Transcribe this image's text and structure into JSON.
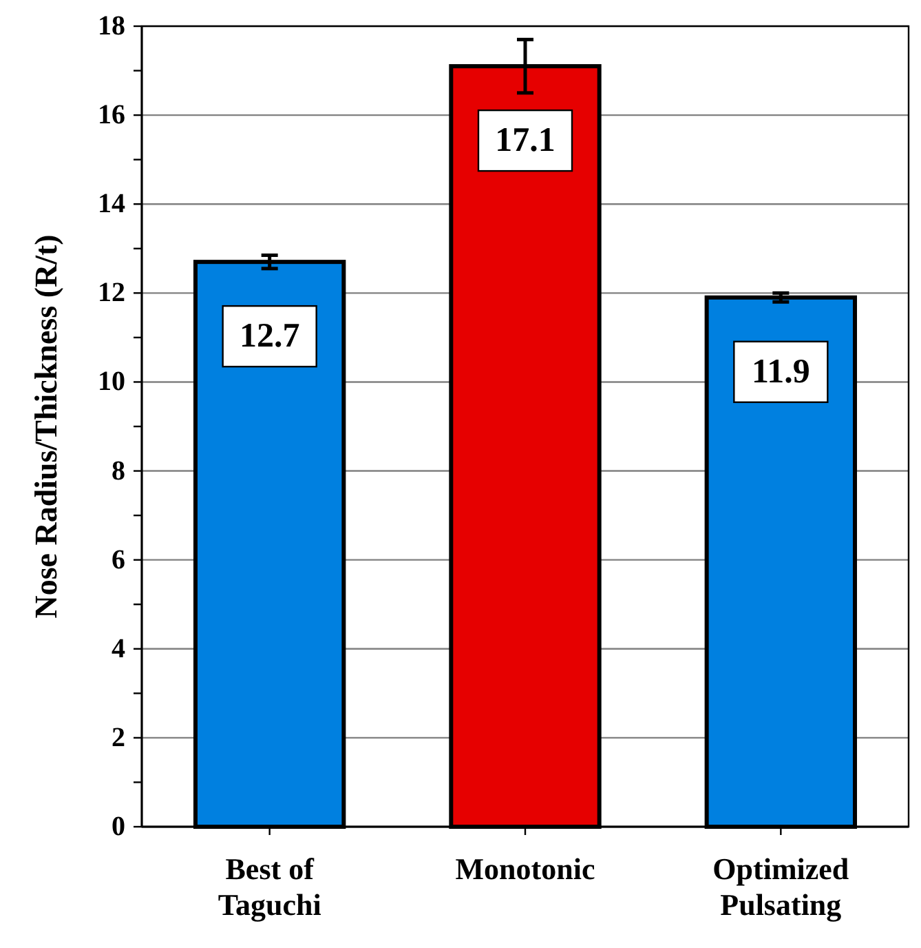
{
  "chart_data": {
    "type": "bar",
    "ylabel": "Nose Radius/Thickness (R/t)",
    "categories": [
      "Best of\nTaguchi",
      "Monotonic",
      "Optimized\nPulsating"
    ],
    "values": [
      12.7,
      17.1,
      11.9
    ],
    "colors": [
      "#0080e0",
      "#e60000",
      "#0080e0"
    ],
    "errors": [
      0.15,
      0.6,
      0.1
    ],
    "data_labels": true,
    "ylim": [
      0,
      18
    ],
    "yticks": [
      0,
      {
        "value": 1,
        "label": null
      },
      2,
      {
        "value": 3,
        "label": null
      },
      4,
      {
        "value": 5,
        "label": null
      },
      6,
      {
        "value": 7,
        "label": null
      },
      8,
      {
        "value": 9,
        "label": null
      },
      10,
      {
        "value": 11,
        "label": null
      },
      12,
      {
        "value": 13,
        "label": null
      },
      14,
      {
        "value": 15,
        "label": null
      },
      16,
      {
        "value": 17,
        "label": null
      },
      18
    ],
    "grid": "y"
  }
}
